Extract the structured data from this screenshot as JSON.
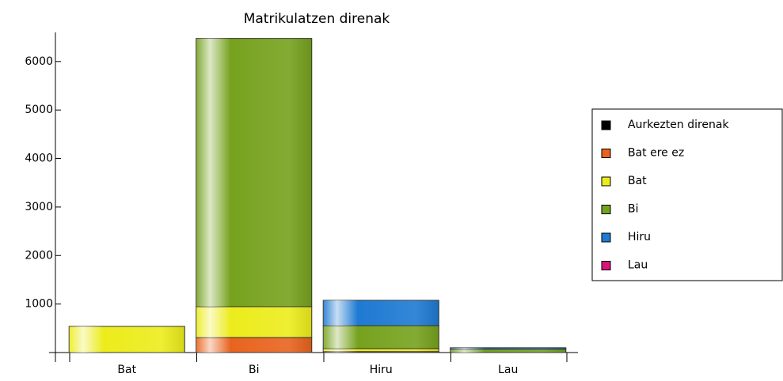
{
  "chart_data": {
    "type": "stacked-bar",
    "title": "Matrikulatzen direnak",
    "categories": [
      "Bat",
      "Bi",
      "Hiru",
      "Lau"
    ],
    "series": [
      {
        "name": "Aurkezten direnak",
        "color": "#000000",
        "values": [
          0,
          0,
          0,
          0
        ]
      },
      {
        "name": "Bat ere ez",
        "color": "#e8641e",
        "values": [
          0,
          310,
          20,
          0
        ]
      },
      {
        "name": "Bat",
        "color": "#ecec1c",
        "values": [
          540,
          636,
          60,
          0
        ]
      },
      {
        "name": "Bi",
        "color": "#76a21e",
        "values": [
          0,
          5530,
          475,
          70
        ]
      },
      {
        "name": "Hiru",
        "color": "#1e7ad2",
        "values": [
          0,
          0,
          522,
          30
        ]
      },
      {
        "name": "Lau",
        "color": "#d8147a",
        "values": [
          0,
          0,
          0,
          0
        ]
      }
    ],
    "ylim": [
      0,
      6600
    ],
    "yticks": [
      1000,
      2000,
      3000,
      4000,
      5000,
      6000
    ],
    "legend": "right"
  }
}
